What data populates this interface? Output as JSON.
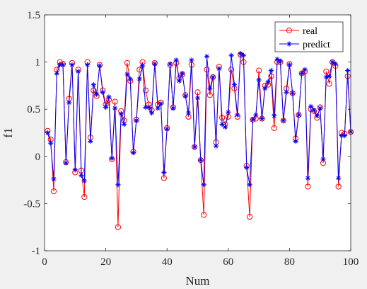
{
  "chart_data": {
    "type": "line",
    "title": "",
    "xlabel": "Num",
    "ylabel": "f1",
    "xlim": [
      0,
      100
    ],
    "ylim": [
      -1,
      1.5
    ],
    "xticks": [
      0,
      20,
      40,
      60,
      80,
      100
    ],
    "yticks": [
      -1,
      -0.5,
      0,
      0.5,
      1,
      1.5
    ],
    "grid": false,
    "legend_position": "top-right",
    "series": [
      {
        "name": "real",
        "color": "#ff0000",
        "marker": "circle",
        "x": [
          1,
          2,
          3,
          4,
          5,
          6,
          7,
          8,
          9,
          10,
          11,
          12,
          13,
          14,
          15,
          16,
          17,
          18,
          19,
          20,
          21,
          22,
          23,
          24,
          25,
          26,
          27,
          28,
          29,
          30,
          31,
          32,
          33,
          34,
          35,
          36,
          37,
          38,
          39,
          40,
          41,
          42,
          43,
          44,
          45,
          46,
          47,
          48,
          49,
          50,
          51,
          52,
          53,
          54,
          55,
          56,
          57,
          58,
          59,
          60,
          61,
          62,
          63,
          64,
          65,
          66,
          67,
          68,
          69,
          70,
          71,
          72,
          73,
          74,
          75,
          76,
          77,
          78,
          79,
          80,
          81,
          82,
          83,
          84,
          85,
          86,
          87,
          88,
          89,
          90,
          91,
          92,
          93,
          94,
          95,
          96,
          97,
          98,
          99,
          100
        ],
        "values": [
          0.27,
          0.18,
          -0.37,
          0.92,
          1.0,
          0.98,
          -0.06,
          0.61,
          0.99,
          -0.17,
          0.92,
          -0.15,
          -0.43,
          1.0,
          0.2,
          0.7,
          0.64,
          0.97,
          0.7,
          0.55,
          0.6,
          -0.03,
          0.58,
          -0.75,
          0.48,
          0.38,
          0.99,
          0.8,
          0.05,
          0.39,
          0.92,
          1.0,
          0.7,
          0.55,
          0.49,
          0.99,
          0.55,
          0.57,
          -0.23,
          0.3,
          0.97,
          0.52,
          0.99,
          0.83,
          0.87,
          0.65,
          0.42,
          0.97,
          0.1,
          0.68,
          -0.04,
          -0.62,
          0.92,
          0.65,
          0.84,
          0.15,
          0.95,
          0.41,
          0.34,
          0.42,
          0.92,
          0.72,
          0.42,
          1.08,
          1.0,
          -0.1,
          -0.64,
          0.39,
          0.4,
          0.91,
          0.4,
          0.75,
          0.76,
          0.85,
          0.3,
          1.0,
          1.0,
          0.38,
          0.72,
          0.98,
          0.67,
          0.19,
          0.44,
          0.88,
          0.9,
          -0.32,
          0.5,
          0.48,
          0.41,
          0.52,
          -0.07,
          0.9,
          0.77,
          1.0,
          0.96,
          -0.32,
          0.25,
          0.24,
          0.85,
          0.26
        ]
      },
      {
        "name": "predict",
        "color": "#0000ff",
        "marker": "asterisk",
        "x": [
          1,
          2,
          3,
          4,
          5,
          6,
          7,
          8,
          9,
          10,
          11,
          12,
          13,
          14,
          15,
          16,
          17,
          18,
          19,
          20,
          21,
          22,
          23,
          24,
          25,
          26,
          27,
          28,
          29,
          30,
          31,
          32,
          33,
          34,
          35,
          36,
          37,
          38,
          39,
          40,
          41,
          42,
          43,
          44,
          45,
          46,
          47,
          48,
          49,
          50,
          51,
          52,
          53,
          54,
          55,
          56,
          57,
          58,
          59,
          60,
          61,
          62,
          63,
          64,
          65,
          66,
          67,
          68,
          69,
          70,
          71,
          72,
          73,
          74,
          75,
          76,
          77,
          78,
          79,
          80,
          81,
          82,
          83,
          84,
          85,
          86,
          87,
          88,
          89,
          90,
          91,
          92,
          93,
          94,
          95,
          96,
          97,
          98,
          99,
          100
        ],
        "values": [
          0.25,
          0.14,
          -0.24,
          0.88,
          0.97,
          0.97,
          -0.07,
          0.57,
          0.97,
          -0.14,
          0.9,
          -0.2,
          -0.26,
          0.97,
          0.16,
          0.76,
          0.66,
          0.96,
          0.68,
          0.52,
          0.63,
          -0.02,
          0.51,
          -0.3,
          0.45,
          0.34,
          0.87,
          0.82,
          0.04,
          0.38,
          0.82,
          0.96,
          0.52,
          0.52,
          0.46,
          0.98,
          0.51,
          0.56,
          -0.17,
          0.29,
          0.98,
          0.51,
          1.02,
          0.8,
          0.88,
          0.64,
          0.46,
          1.02,
          0.1,
          0.62,
          -0.04,
          -0.3,
          1.06,
          0.72,
          0.84,
          0.11,
          0.93,
          0.34,
          0.31,
          0.47,
          1.07,
          0.76,
          0.44,
          1.09,
          1.07,
          -0.12,
          -0.3,
          0.39,
          0.44,
          0.81,
          0.4,
          0.72,
          0.79,
          0.91,
          0.43,
          1.03,
          1.01,
          0.38,
          0.68,
          0.97,
          0.67,
          0.16,
          0.44,
          0.88,
          0.92,
          -0.23,
          0.53,
          0.49,
          0.43,
          0.51,
          -0.03,
          0.84,
          0.85,
          1.0,
          0.98,
          -0.23,
          0.22,
          0.22,
          0.91,
          0.26
        ]
      }
    ]
  }
}
